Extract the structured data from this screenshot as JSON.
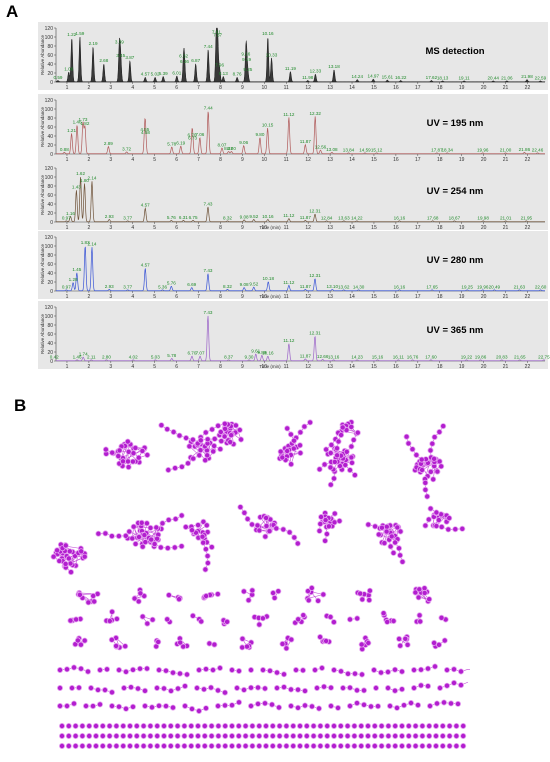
{
  "panel_a_label": "A",
  "panel_b_label": "B",
  "colors": {
    "ms": "#1a1a1a",
    "uv195": "#b05a5a",
    "uv254": "#6e5238",
    "uv280": "#3a55d6",
    "uv365": "#9b64c8",
    "peak_label": "#1f8a2a",
    "panel_bg": "#e7e7e7",
    "node": "#b21ecf",
    "node_edge": "#e6a6f0"
  },
  "chart_data": [
    {
      "type": "line",
      "title": "MS detection",
      "ylabel": "Relative Abundance",
      "xlim": [
        0.5,
        22.8
      ],
      "ylim": [
        0,
        120
      ],
      "yticks": [
        0,
        20,
        40,
        60,
        80,
        100,
        120
      ],
      "xticks": [
        1,
        2,
        3,
        4,
        5,
        6,
        7,
        8,
        9,
        10,
        11,
        12,
        13,
        14,
        15,
        16,
        17,
        18,
        19,
        20,
        21,
        22
      ],
      "peaks": [
        {
          "t": 0.59,
          "h": 3
        },
        {
          "t": 1.08,
          "h": 22
        },
        {
          "t": 1.22,
          "h": 98
        },
        {
          "t": 1.59,
          "h": 100
        },
        {
          "t": 2.19,
          "h": 78
        },
        {
          "t": 2.68,
          "h": 40
        },
        {
          "t": 3.39,
          "h": 82
        },
        {
          "t": 3.45,
          "h": 52
        },
        {
          "t": 3.87,
          "h": 47
        },
        {
          "t": 4.57,
          "h": 10
        },
        {
          "t": 5.02,
          "h": 10
        },
        {
          "t": 5.39,
          "h": 12
        },
        {
          "t": 6.01,
          "h": 13
        },
        {
          "t": 6.32,
          "h": 50
        },
        {
          "t": 6.36,
          "h": 38
        },
        {
          "t": 6.87,
          "h": 40
        },
        {
          "t": 7.44,
          "h": 72
        },
        {
          "t": 7.81,
          "h": 104
        },
        {
          "t": 7.87,
          "h": 97
        },
        {
          "t": 7.96,
          "h": 30
        },
        {
          "t": 8.13,
          "h": 12
        },
        {
          "t": 8.76,
          "h": 10
        },
        {
          "t": 9.19,
          "h": 43
        },
        {
          "t": 9.25,
          "h": 20
        },
        {
          "t": 9.16,
          "h": 55
        },
        {
          "t": 10.16,
          "h": 100
        },
        {
          "t": 10.33,
          "h": 53
        },
        {
          "t": 11.19,
          "h": 23
        },
        {
          "t": 11.98,
          "h": 3
        },
        {
          "t": 12.33,
          "h": 17
        },
        {
          "t": 13.18,
          "h": 27
        },
        {
          "t": 14.24,
          "h": 5
        },
        {
          "t": 14.97,
          "h": 6
        },
        {
          "t": 15.61,
          "h": 4
        },
        {
          "t": 16.22,
          "h": 3
        },
        {
          "t": 17.62,
          "h": 3
        },
        {
          "t": 18.13,
          "h": 2
        },
        {
          "t": 19.11,
          "h": 2
        },
        {
          "t": 20.44,
          "h": 2
        },
        {
          "t": 21.06,
          "h": 2
        },
        {
          "t": 21.98,
          "h": 5
        },
        {
          "t": 22.59,
          "h": 2
        }
      ]
    },
    {
      "type": "line",
      "title": "UV = 195 nm",
      "ylabel": "Relative Abundance",
      "xlim": [
        0.5,
        22.8
      ],
      "ylim": [
        0,
        120
      ],
      "yticks": [
        0,
        20,
        40,
        60,
        80,
        100,
        120
      ],
      "xticks": [
        1,
        2,
        3,
        4,
        5,
        6,
        7,
        8,
        9,
        10,
        11,
        12,
        13,
        14,
        15,
        16,
        17,
        18,
        19,
        20,
        21,
        22
      ],
      "peaks": [
        {
          "t": 0.88,
          "h": 3
        },
        {
          "t": 1.21,
          "h": 45
        },
        {
          "t": 1.46,
          "h": 64
        },
        {
          "t": 1.73,
          "h": 69
        },
        {
          "t": 1.82,
          "h": 60
        },
        {
          "t": 2.89,
          "h": 16
        },
        {
          "t": 3.72,
          "h": 4
        },
        {
          "t": 4.55,
          "h": 47
        },
        {
          "t": 4.58,
          "h": 40
        },
        {
          "t": 5.78,
          "h": 15
        },
        {
          "t": 6.19,
          "h": 17
        },
        {
          "t": 6.7,
          "h": 35
        },
        {
          "t": 6.73,
          "h": 28
        },
        {
          "t": 7.06,
          "h": 36
        },
        {
          "t": 7.44,
          "h": 95
        },
        {
          "t": 8.07,
          "h": 13
        },
        {
          "t": 8.37,
          "h": 5
        },
        {
          "t": 8.5,
          "h": 5
        },
        {
          "t": 9.06,
          "h": 18
        },
        {
          "t": 9.8,
          "h": 36
        },
        {
          "t": 10.15,
          "h": 57
        },
        {
          "t": 11.12,
          "h": 81
        },
        {
          "t": 11.87,
          "h": 20
        },
        {
          "t": 12.32,
          "h": 83
        },
        {
          "t": 12.56,
          "h": 8
        },
        {
          "t": 13.08,
          "h": 3
        },
        {
          "t": 13.84,
          "h": 2
        },
        {
          "t": 14.59,
          "h": 2
        },
        {
          "t": 15.12,
          "h": 2
        },
        {
          "t": 17.87,
          "h": 2
        },
        {
          "t": 18.34,
          "h": 2
        },
        {
          "t": 19.96,
          "h": 2
        },
        {
          "t": 21.0,
          "h": 2
        },
        {
          "t": 21.86,
          "h": 3
        },
        {
          "t": 22.46,
          "h": 2
        }
      ]
    },
    {
      "type": "line",
      "title": "UV = 254 nm",
      "ylabel": "Relative Abundance",
      "xlim": [
        0.5,
        22.8
      ],
      "ylim": [
        0,
        120
      ],
      "yticks": [
        0,
        20,
        40,
        60,
        80,
        100,
        120
      ],
      "xticks": [
        1,
        2,
        3,
        4,
        5,
        6,
        7,
        8,
        9,
        10,
        11,
        12,
        13,
        14,
        15,
        16,
        17,
        18,
        19,
        20,
        21,
        22
      ],
      "xlabel": "Time (min)",
      "peaks": [
        {
          "t": 0.97,
          "h": 2
        },
        {
          "t": 1.16,
          "h": 12
        },
        {
          "t": 1.43,
          "h": 70
        },
        {
          "t": 1.62,
          "h": 100
        },
        {
          "t": 1.8,
          "h": 85
        },
        {
          "t": 2.14,
          "h": 90
        },
        {
          "t": 2.93,
          "h": 5
        },
        {
          "t": 3.77,
          "h": 2
        },
        {
          "t": 4.57,
          "h": 30
        },
        {
          "t": 5.76,
          "h": 3
        },
        {
          "t": 6.31,
          "h": 3
        },
        {
          "t": 6.75,
          "h": 3
        },
        {
          "t": 7.43,
          "h": 33
        },
        {
          "t": 8.32,
          "h": 2
        },
        {
          "t": 9.08,
          "h": 4
        },
        {
          "t": 9.52,
          "h": 5
        },
        {
          "t": 10.16,
          "h": 5
        },
        {
          "t": 11.12,
          "h": 7
        },
        {
          "t": 11.87,
          "h": 3
        },
        {
          "t": 12.31,
          "h": 17
        },
        {
          "t": 12.84,
          "h": 2
        },
        {
          "t": 13.63,
          "h": 2
        },
        {
          "t": 14.22,
          "h": 2
        },
        {
          "t": 16.16,
          "h": 2
        },
        {
          "t": 17.68,
          "h": 2
        },
        {
          "t": 18.67,
          "h": 2
        },
        {
          "t": 19.98,
          "h": 2
        },
        {
          "t": 21.01,
          "h": 2
        },
        {
          "t": 21.95,
          "h": 2
        }
      ]
    },
    {
      "type": "line",
      "title": "UV = 280 nm",
      "ylabel": "Relative Abundance",
      "xlim": [
        0.5,
        22.8
      ],
      "ylim": [
        0,
        120
      ],
      "yticks": [
        0,
        20,
        40,
        60,
        80,
        100,
        120
      ],
      "xticks": [
        1,
        2,
        3,
        4,
        5,
        6,
        7,
        8,
        9,
        10,
        11,
        12,
        13,
        14,
        15,
        16,
        17,
        18,
        19,
        20,
        21,
        22
      ],
      "xlabel": "Time (min)",
      "peaks": [
        {
          "t": 0.97,
          "h": 2
        },
        {
          "t": 1.28,
          "h": 18
        },
        {
          "t": 1.45,
          "h": 40
        },
        {
          "t": 1.83,
          "h": 100
        },
        {
          "t": 2.14,
          "h": 97
        },
        {
          "t": 2.93,
          "h": 3
        },
        {
          "t": 3.77,
          "h": 2
        },
        {
          "t": 4.57,
          "h": 50
        },
        {
          "t": 5.36,
          "h": 2
        },
        {
          "t": 5.76,
          "h": 10
        },
        {
          "t": 6.69,
          "h": 7
        },
        {
          "t": 7.43,
          "h": 38
        },
        {
          "t": 8.32,
          "h": 3
        },
        {
          "t": 9.08,
          "h": 7
        },
        {
          "t": 9.52,
          "h": 8
        },
        {
          "t": 10.18,
          "h": 20
        },
        {
          "t": 11.12,
          "h": 12
        },
        {
          "t": 11.87,
          "h": 3
        },
        {
          "t": 12.31,
          "h": 27
        },
        {
          "t": 13.1,
          "h": 3
        },
        {
          "t": 13.62,
          "h": 2
        },
        {
          "t": 14.3,
          "h": 2
        },
        {
          "t": 16.16,
          "h": 2
        },
        {
          "t": 17.65,
          "h": 2
        },
        {
          "t": 19.25,
          "h": 2
        },
        {
          "t": 19.96,
          "h": 2
        },
        {
          "t": 20.49,
          "h": 2
        },
        {
          "t": 21.63,
          "h": 2
        },
        {
          "t": 22.6,
          "h": 2
        }
      ]
    },
    {
      "type": "line",
      "title": "UV = 365 nm",
      "ylabel": "Relative Abundance",
      "xlim": [
        0.5,
        22.8
      ],
      "ylim": [
        0,
        120
      ],
      "yticks": [
        0,
        20,
        40,
        60,
        80,
        100,
        120
      ],
      "xticks": [
        1,
        2,
        3,
        4,
        5,
        6,
        7,
        8,
        9,
        10,
        11,
        12,
        13,
        14,
        15,
        16,
        17,
        18,
        19,
        20,
        21,
        22
      ],
      "xlabel": "Time (min)",
      "peaks": [
        {
          "t": 0.42,
          "h": 2
        },
        {
          "t": 1.46,
          "h": 2
        },
        {
          "t": 1.74,
          "h": 8
        },
        {
          "t": 2.11,
          "h": 2
        },
        {
          "t": 2.8,
          "h": 2
        },
        {
          "t": 4.02,
          "h": 2
        },
        {
          "t": 5.03,
          "h": 2
        },
        {
          "t": 5.78,
          "h": 5
        },
        {
          "t": 6.7,
          "h": 10
        },
        {
          "t": 7.07,
          "h": 10
        },
        {
          "t": 7.43,
          "h": 100
        },
        {
          "t": 8.37,
          "h": 2
        },
        {
          "t": 9.3,
          "h": 2
        },
        {
          "t": 9.61,
          "h": 15
        },
        {
          "t": 9.89,
          "h": 12
        },
        {
          "t": 10.16,
          "h": 10
        },
        {
          "t": 11.12,
          "h": 38
        },
        {
          "t": 11.87,
          "h": 4
        },
        {
          "t": 12.31,
          "h": 55
        },
        {
          "t": 12.66,
          "h": 3
        },
        {
          "t": 13.16,
          "h": 2
        },
        {
          "t": 14.23,
          "h": 2
        },
        {
          "t": 15.16,
          "h": 2
        },
        {
          "t": 16.11,
          "h": 2
        },
        {
          "t": 16.76,
          "h": 2
        },
        {
          "t": 17.6,
          "h": 2
        },
        {
          "t": 19.22,
          "h": 2
        },
        {
          "t": 19.86,
          "h": 2
        },
        {
          "t": 20.83,
          "h": 2
        },
        {
          "t": 21.65,
          "h": 2
        },
        {
          "t": 22.75,
          "h": 2
        }
      ]
    }
  ]
}
